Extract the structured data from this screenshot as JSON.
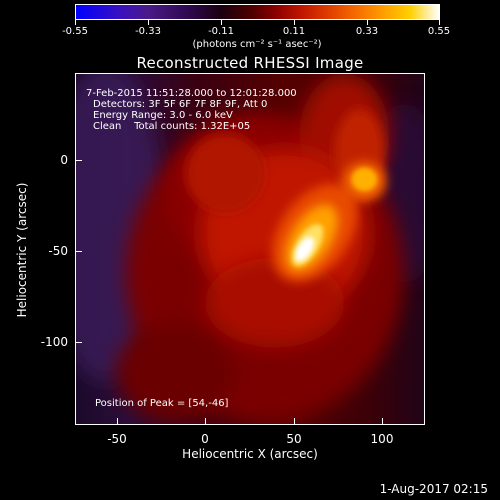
{
  "colorbar": {
    "ticks": [
      "-0.55",
      "-0.33",
      "-0.11",
      "0.11",
      "0.33",
      "0.55"
    ],
    "units": "(photons cm⁻² s⁻¹ asec⁻²)"
  },
  "title": "Reconstructed RHESSI Image",
  "info": {
    "time_range": "7-Feb-2015 11:51:28.000 to 12:01:28.000",
    "detectors": "Detectors: 3F 5F 6F 7F 8F 9F, Att 0",
    "energy": "Energy Range: 3.0 - 6.0 keV",
    "clean": "Clean    Total counts: 1.32E+05",
    "peak": "Position of Peak = [54,-46]"
  },
  "axes": {
    "xlabel": "Heliocentric X (arcsec)",
    "ylabel": "Heliocentric Y (arcsec)",
    "xticks": [
      "-50",
      "0",
      "50",
      "100"
    ],
    "yticks": [
      "0",
      "-50",
      "-100"
    ]
  },
  "datestamp": "1-Aug-2017 02:15"
}
